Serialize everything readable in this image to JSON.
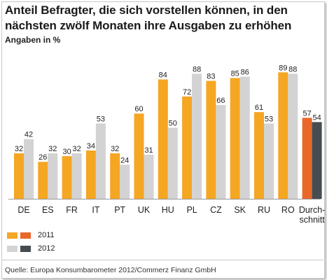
{
  "title": "Anteil Befragter, die sich vorstellen können, in den nächsten zwölf Monaten ihre Ausgaben zu erhöhen",
  "subtitle": "Angaben in %",
  "source": "Quelle: Europa Konsumbarometer 2012/Commerz Finanz GmbH",
  "colors": {
    "orange_2011": "#f5a623",
    "grey_2012": "#d3d3d3",
    "dark_orange_2011": "#e8682a",
    "dark_grey_2012": "#454d52"
  },
  "legend": [
    {
      "label": "2011",
      "colors": [
        "#f5a623",
        "#e8682a"
      ]
    },
    {
      "label": "2012",
      "colors": [
        "#d3d3d3",
        "#454d52"
      ]
    }
  ],
  "chart_data": {
    "type": "bar",
    "categories": [
      "DE",
      "ES",
      "FR",
      "IT",
      "PT",
      "UK",
      "HU",
      "PL",
      "CZ",
      "SK",
      "RU",
      "RO",
      "Durchschnitt"
    ],
    "category_lines": [
      [
        "DE"
      ],
      [
        "ES"
      ],
      [
        "FR"
      ],
      [
        "IT"
      ],
      [
        "PT"
      ],
      [
        "UK"
      ],
      [
        "HU"
      ],
      [
        "PL"
      ],
      [
        "CZ"
      ],
      [
        "SK"
      ],
      [
        "RU"
      ],
      [
        "RO"
      ],
      [
        "Durch-",
        "schnitt"
      ]
    ],
    "series": [
      {
        "name": "2011",
        "values": [
          32,
          26,
          30,
          34,
          32,
          60,
          84,
          72,
          83,
          85,
          61,
          89,
          57
        ]
      },
      {
        "name": "2012",
        "values": [
          42,
          32,
          32,
          53,
          24,
          31,
          50,
          88,
          66,
          86,
          53,
          88,
          54
        ]
      }
    ],
    "highlight_category": "Durchschnitt",
    "ylim": [
      0,
      100
    ],
    "grid": false,
    "legend_position": "bottom-left"
  }
}
